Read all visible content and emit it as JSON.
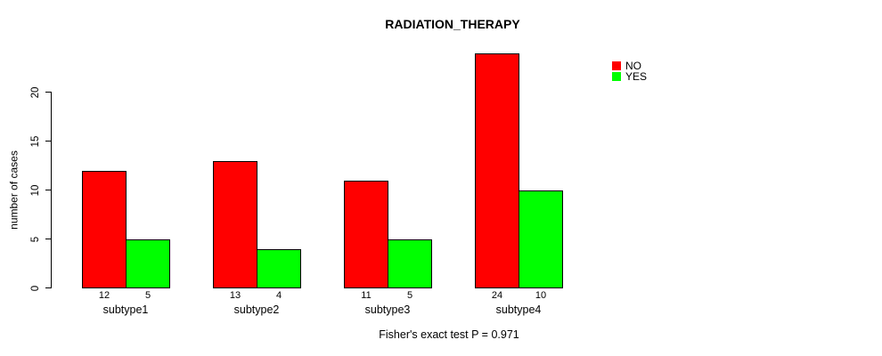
{
  "title": "RADIATION_THERAPY",
  "footer_note": "Fisher's exact test P = 0.971",
  "colors": {
    "no": "#FF0000",
    "yes": "#00FF00",
    "axis": "#000000",
    "background": "#FFFFFF"
  },
  "legend": {
    "position": "top-right",
    "entries": [
      {
        "label": "NO",
        "color": "#FF0000"
      },
      {
        "label": "YES",
        "color": "#00FF00"
      }
    ]
  },
  "chart_data": {
    "type": "bar",
    "title": "RADIATION_THERAPY",
    "xlabel": "",
    "ylabel": "number of cases",
    "categories": [
      "subtype1",
      "subtype2",
      "subtype3",
      "subtype4"
    ],
    "series": [
      {
        "name": "NO",
        "color": "#FF0000",
        "values": [
          12,
          13,
          11,
          24
        ]
      },
      {
        "name": "YES",
        "color": "#00FF00",
        "values": [
          5,
          4,
          5,
          10
        ]
      }
    ],
    "bar_value_labels": [
      [
        12,
        5
      ],
      [
        13,
        4
      ],
      [
        11,
        5
      ],
      [
        24,
        10
      ]
    ],
    "ylim": [
      0,
      20
    ],
    "yticks": [
      0,
      5,
      10,
      15,
      20
    ],
    "grid": false,
    "legend_position": "top-right",
    "annotation": "Fisher's exact test P = 0.971"
  }
}
